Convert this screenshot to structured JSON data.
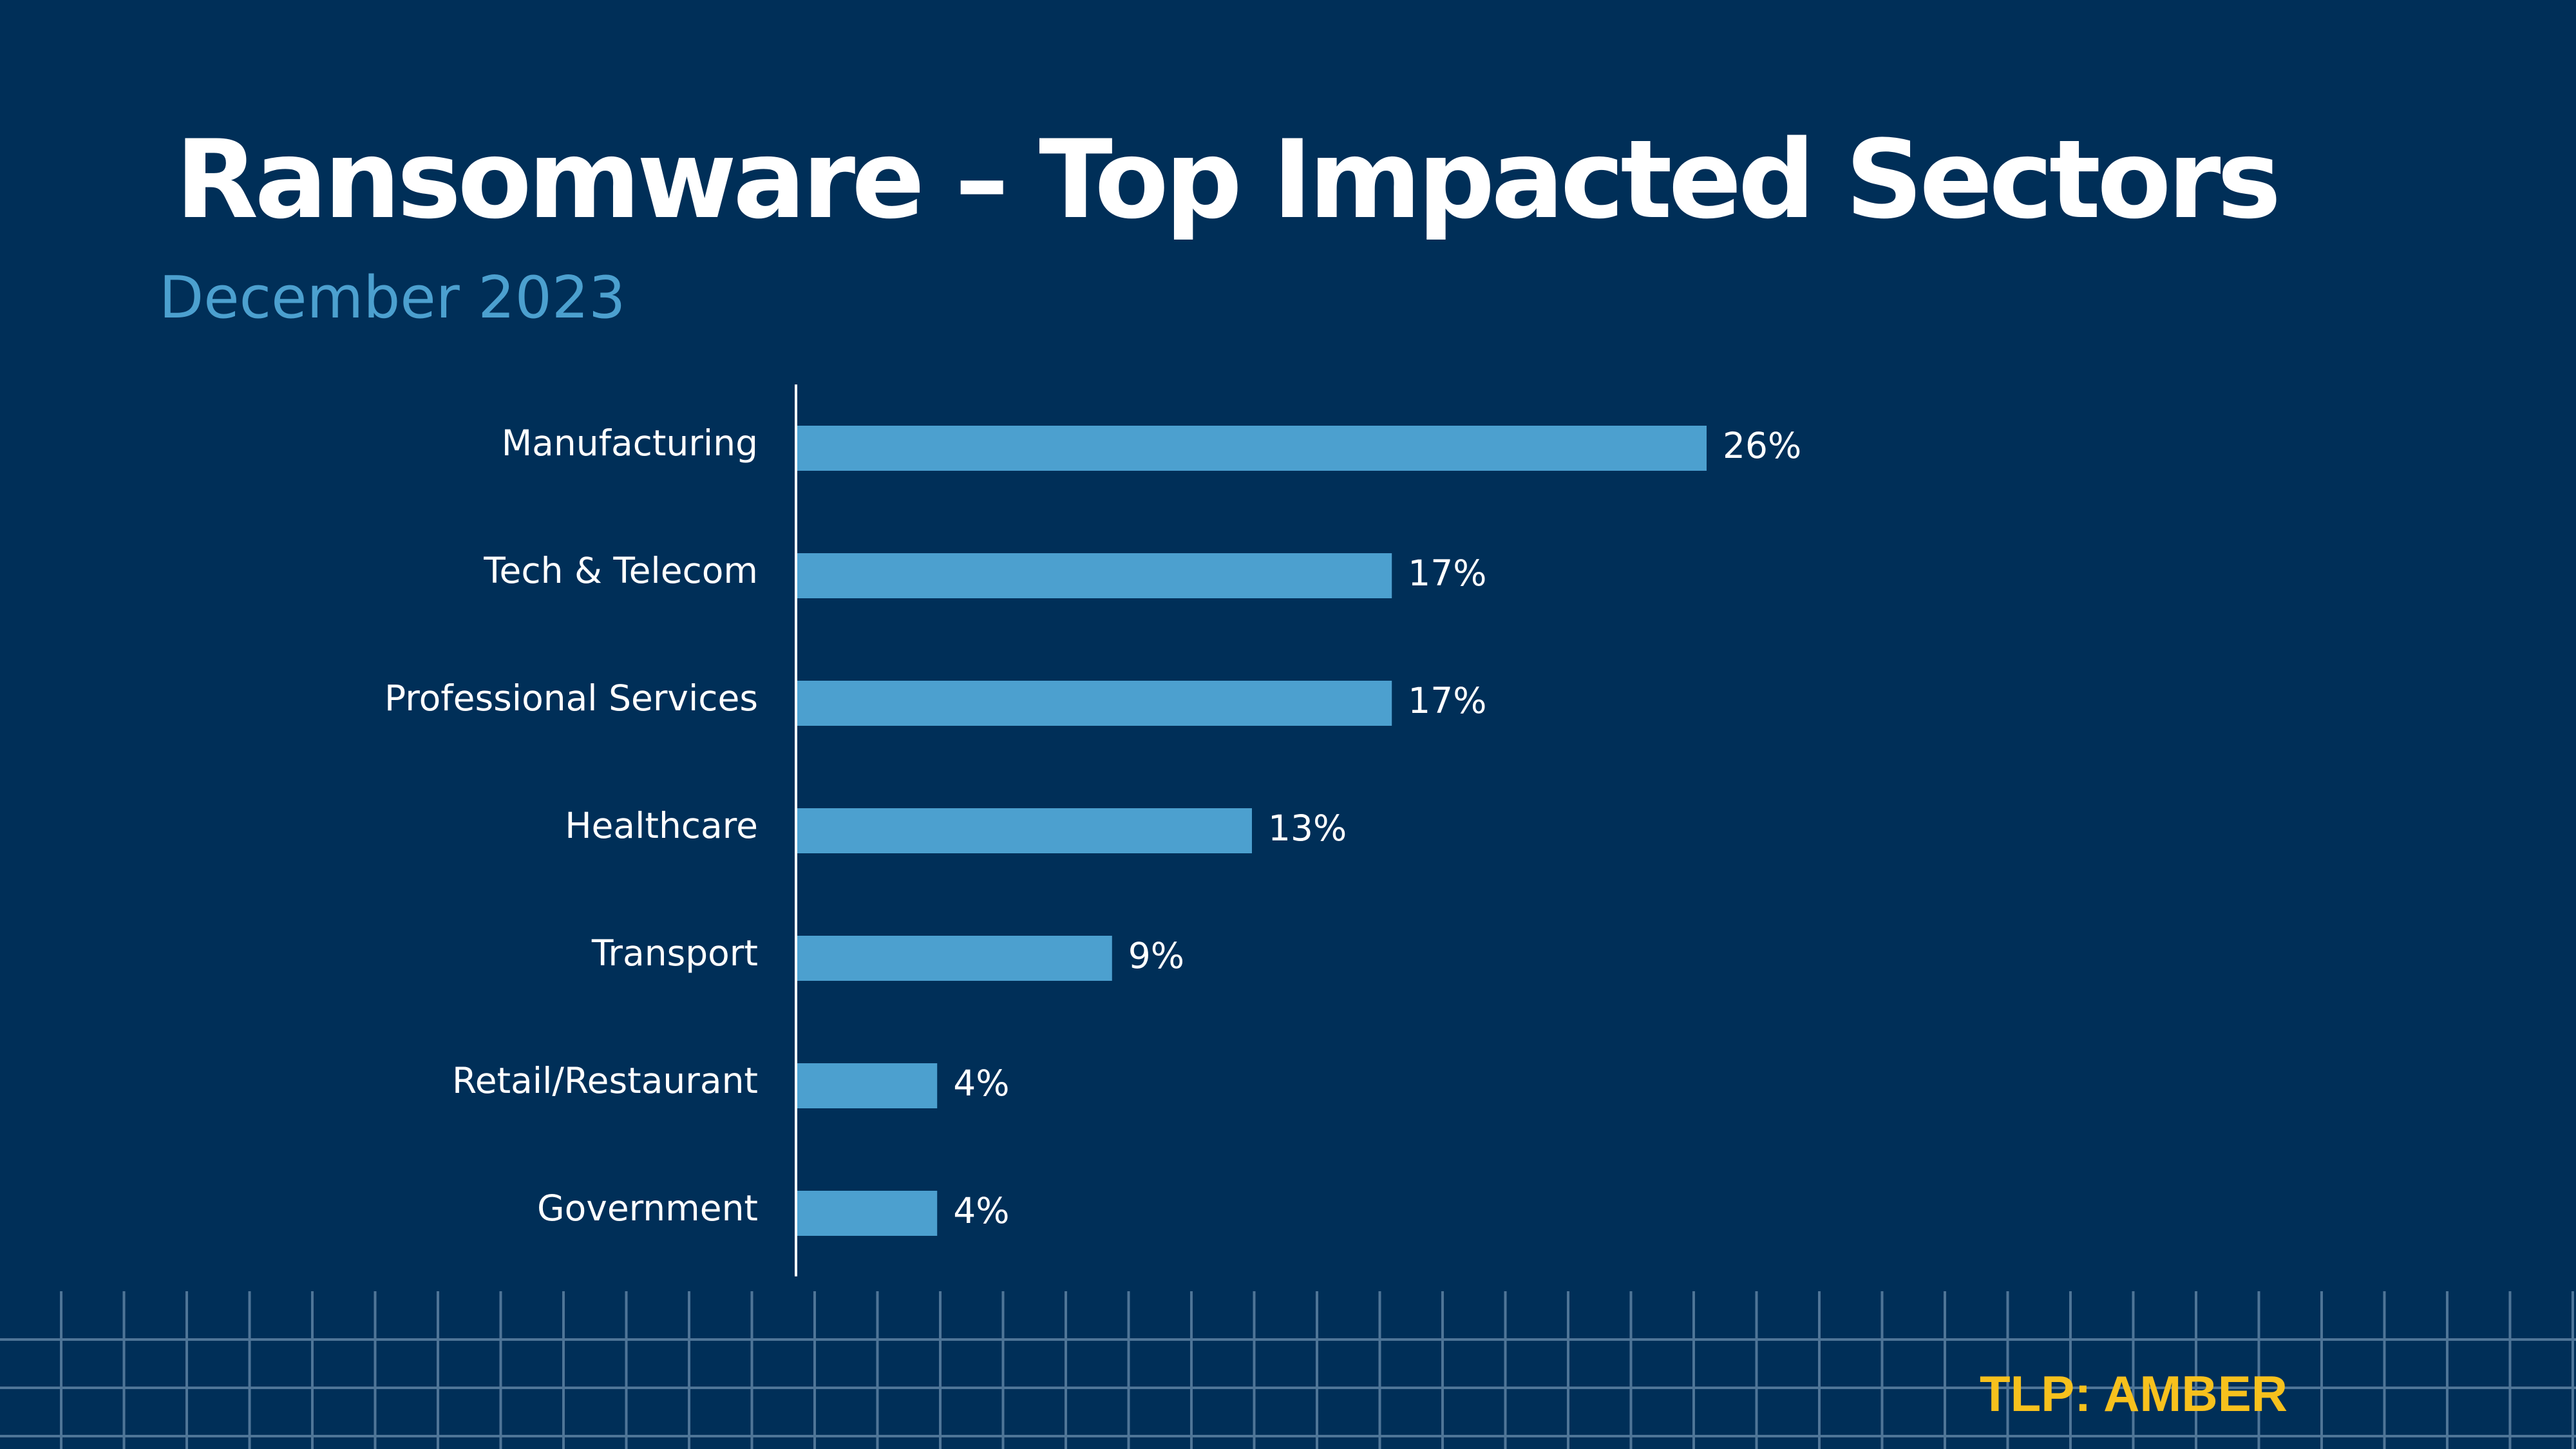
{
  "slide": {
    "title": "Ransomware – Top Impacted Sectors",
    "subtitle": "December 2023",
    "tlp": "TLP: AMBER"
  },
  "colors": {
    "background": "#002f58",
    "bar": "#4ca0cf",
    "title": "#ffffff",
    "subtitle": "#4ca0cf",
    "tlp": "#f7c11d",
    "grid": "#4f7597"
  },
  "chart_data": {
    "type": "bar",
    "orientation": "horizontal",
    "categories": [
      "Manufacturing",
      "Tech & Telecom",
      "Professional Services",
      "Healthcare",
      "Transport",
      "Retail/Restaurant",
      "Government"
    ],
    "values": [
      26,
      17,
      17,
      13,
      9,
      4,
      4
    ],
    "value_labels": [
      "26%",
      "17%",
      "17%",
      "13%",
      "9%",
      "4%",
      "4%"
    ],
    "unit": "%",
    "title": "Ransomware – Top Impacted Sectors",
    "subtitle": "December 2023",
    "xlabel": "",
    "ylabel": "",
    "xlim": [
      0,
      26
    ],
    "grid": false,
    "legend": "none"
  }
}
